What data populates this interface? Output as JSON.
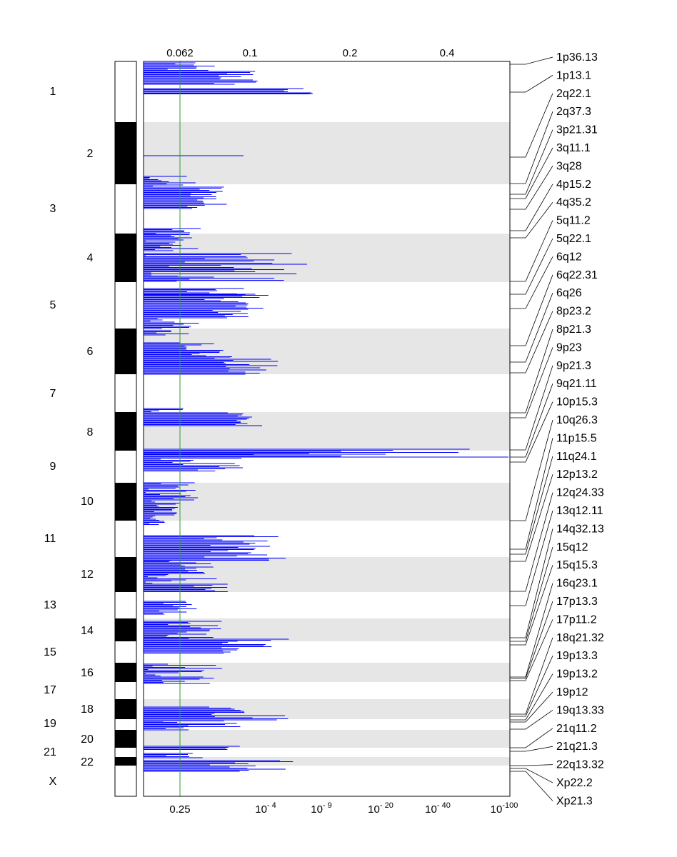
{
  "chart_data": {
    "type": "genome-wide significance plot",
    "colors": {
      "trace": "#0000ff",
      "threshold": "#2e9d2e",
      "band_shade": "#e6e6e6",
      "ideogram_dark": "#000000"
    },
    "chromosomes": [
      "1",
      "2",
      "3",
      "4",
      "5",
      "6",
      "7",
      "8",
      "9",
      "10",
      "11",
      "12",
      "13",
      "14",
      "15",
      "16",
      "17",
      "18",
      "19",
      "20",
      "21",
      "22",
      "X"
    ],
    "top_axis": {
      "ticks": [
        "0.062",
        "0.1",
        "0.2",
        "0.4"
      ]
    },
    "bottom_axis": {
      "ticks": [
        {
          "base": "0.25",
          "exp": ""
        },
        {
          "base": "10",
          "exp": "- 4"
        },
        {
          "base": "10",
          "exp": "- 9"
        },
        {
          "base": "10",
          "exp": "- 20"
        },
        {
          "base": "10",
          "exp": "- 40"
        },
        {
          "base": "10",
          "exp": "-100"
        }
      ]
    },
    "threshold": {
      "top_value": 0.062,
      "bottom_value": 0.25
    },
    "cytobands": [
      "1p36.13",
      "1p13.1",
      "2q22.1",
      "2q37.3",
      "3p21.31",
      "3q11.1",
      "3q28",
      "4p15.2",
      "4q35.2",
      "5q11.2",
      "5q22.1",
      "6q12",
      "6q22.31",
      "6q26",
      "8p23.2",
      "8p21.3",
      "9p23",
      "9p21.3",
      "9q21.11",
      "10p15.3",
      "10q26.3",
      "11p15.5",
      "11q24.1",
      "12p13.2",
      "12q24.33",
      "13q12.11",
      "14q32.13",
      "15q12",
      "15q15.3",
      "16q23.1",
      "17p13.3",
      "17p11.2",
      "18q21.32",
      "19p13.3",
      "19p13.2",
      "19p12",
      "19q13.33",
      "21q11.2",
      "21q21.3",
      "22q13.32",
      "Xp22.2",
      "Xp21.3"
    ]
  }
}
